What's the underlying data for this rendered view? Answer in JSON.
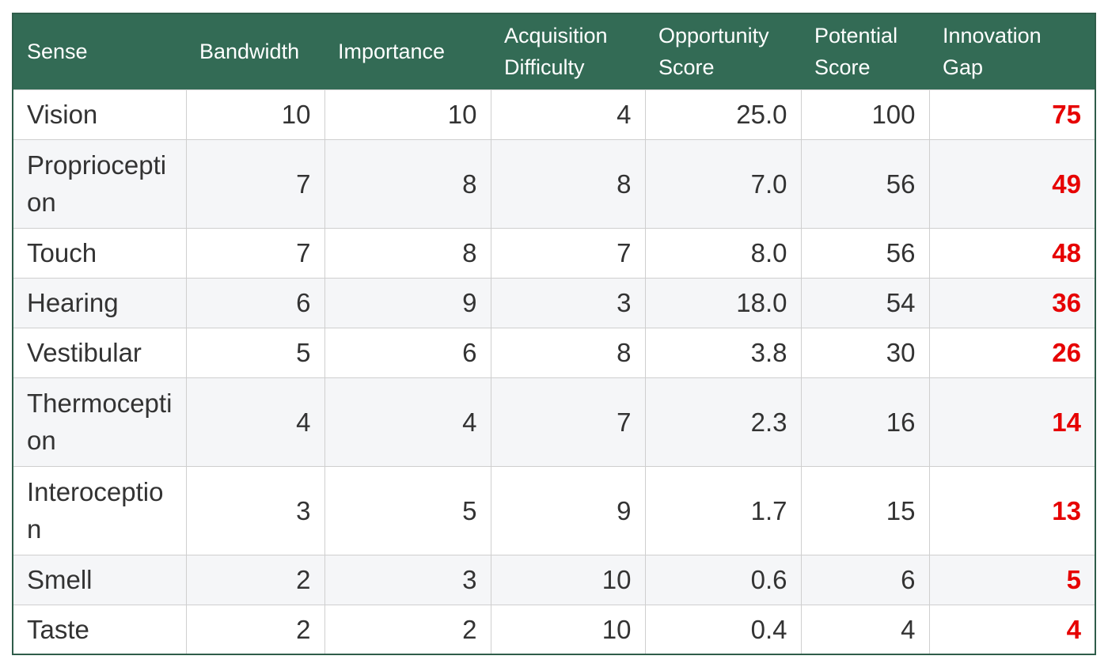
{
  "chart_data": {
    "type": "table",
    "columns": [
      "Sense",
      "Bandwidth",
      "Importance",
      "Acquisition Difficulty",
      "Opportunity Score",
      "Potential Score",
      "Innovation Gap"
    ],
    "rows": [
      {
        "sense": "Vision",
        "bandwidth": "10",
        "importance": "10",
        "acquisition_difficulty": "4",
        "opportunity_score": "25.0",
        "potential_score": "100",
        "innovation_gap": "75"
      },
      {
        "sense": "Proprioception",
        "bandwidth": "7",
        "importance": "8",
        "acquisition_difficulty": "8",
        "opportunity_score": "7.0",
        "potential_score": "56",
        "innovation_gap": "49"
      },
      {
        "sense": "Touch",
        "bandwidth": "7",
        "importance": "8",
        "acquisition_difficulty": "7",
        "opportunity_score": "8.0",
        "potential_score": "56",
        "innovation_gap": "48"
      },
      {
        "sense": "Hearing",
        "bandwidth": "6",
        "importance": "9",
        "acquisition_difficulty": "3",
        "opportunity_score": "18.0",
        "potential_score": "54",
        "innovation_gap": "36"
      },
      {
        "sense": "Vestibular",
        "bandwidth": "5",
        "importance": "6",
        "acquisition_difficulty": "8",
        "opportunity_score": "3.8",
        "potential_score": "30",
        "innovation_gap": "26"
      },
      {
        "sense": "Thermoception",
        "bandwidth": "4",
        "importance": "4",
        "acquisition_difficulty": "7",
        "opportunity_score": "2.3",
        "potential_score": "16",
        "innovation_gap": "14"
      },
      {
        "sense": "Interoception",
        "bandwidth": "3",
        "importance": "5",
        "acquisition_difficulty": "9",
        "opportunity_score": "1.7",
        "potential_score": "15",
        "innovation_gap": "13"
      },
      {
        "sense": "Smell",
        "bandwidth": "2",
        "importance": "3",
        "acquisition_difficulty": "10",
        "opportunity_score": "0.6",
        "potential_score": "6",
        "innovation_gap": "5"
      },
      {
        "sense": "Taste",
        "bandwidth": "2",
        "importance": "2",
        "acquisition_difficulty": "10",
        "opportunity_score": "0.4",
        "potential_score": "4",
        "innovation_gap": "4"
      }
    ]
  },
  "colors": {
    "header_background": "#336b55",
    "header_text": "#ffffff",
    "gap_text": "#e60000",
    "stripe": "#f5f6f8"
  }
}
